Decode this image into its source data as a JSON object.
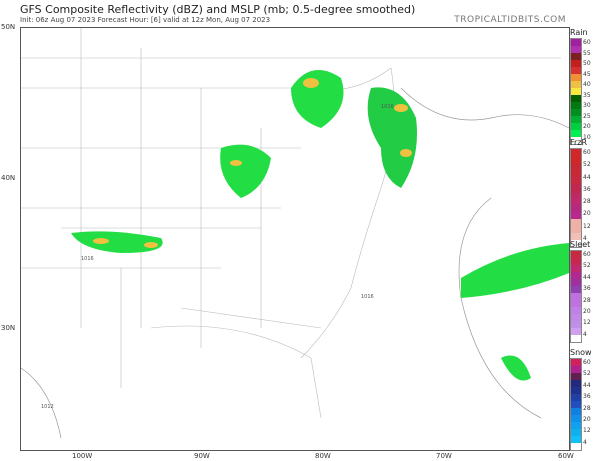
{
  "title": "GFS Composite Reflectivity (dBZ) and MSLP (mb; 0.5-degree smoothed)",
  "subtitle": "Init: 06z Aug 07 2023   Forecast Hour: [6]   valid at 12z Mon, Aug 07 2023",
  "brand": "TROPICALTIDBITS.COM",
  "lat_labels": [
    "50N",
    "40N",
    "30N"
  ],
  "lon_labels": [
    "100W",
    "90W",
    "80W",
    "70W",
    "60W"
  ],
  "isobars": [
    "1016",
    "1016",
    "1016",
    "1012"
  ],
  "legends": [
    {
      "name": "Rain",
      "labels": [
        "60",
        "55",
        "50",
        "45",
        "40",
        "35",
        "30",
        "25",
        "20",
        "10"
      ],
      "colors": [
        "#a020a0",
        "#b030b0",
        "#7a2020",
        "#c02020",
        "#d83030",
        "#f09030",
        "#f0c040",
        "#f8e840",
        "#006000",
        "#007a10",
        "#009020",
        "#00b030",
        "#00d040",
        "#00f050",
        "#ffffff"
      ]
    },
    {
      "name": "FrzR",
      "labels": [
        "60",
        "52",
        "44",
        "36",
        "28",
        "20",
        "12",
        "4"
      ],
      "colors": [
        "#d02828",
        "#d02828",
        "#c82830",
        "#c82838",
        "#c82840",
        "#c02850",
        "#c02860",
        "#c02870",
        "#b82880",
        "#b82890",
        "#f0b0a8",
        "#f0b0a8",
        "#f0c0b8",
        "#ffffff"
      ]
    },
    {
      "name": "Sleet",
      "labels": [
        "60",
        "52",
        "44",
        "36",
        "28",
        "20",
        "12",
        "4"
      ],
      "colors": [
        "#c82840",
        "#c82850",
        "#c02870",
        "#b02890",
        "#a030a0",
        "#9040b0",
        "#c070e0",
        "#c070e0",
        "#c080e8",
        "#c088e8",
        "#c090e8",
        "#d0a0f0",
        "#ffffff"
      ]
    },
    {
      "name": "Snow",
      "labels": [
        "60",
        "52",
        "44",
        "36",
        "28",
        "20",
        "12",
        "4"
      ],
      "colors": [
        "#d02060",
        "#b02090",
        "#602050",
        "#202880",
        "#203090",
        "#2040a8",
        "#2050c0",
        "#1080e0",
        "#1090e8",
        "#10a0f0",
        "#10b0f0",
        "#10c0f8",
        "#ffffff"
      ]
    }
  ],
  "colors": {
    "precip_light": "#22dd44",
    "precip_mid": "#119933",
    "precip_heavy": "#f0c040",
    "border": "#999999"
  }
}
